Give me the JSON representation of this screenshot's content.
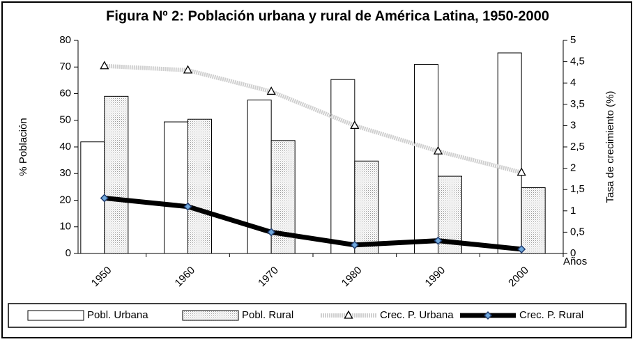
{
  "chart_data": {
    "type": "bar_line",
    "title": "Figura Nº 2: Población urbana y rural de América Latina, 1950-2000",
    "ylabel": "% Población",
    "y2label": "Tasa de crecimiento (%)",
    "xlabel": "Años",
    "categories": [
      "1950",
      "1960",
      "1970",
      "1980",
      "1990",
      "2000"
    ],
    "series": [
      {
        "name": "Pobl. Urbana",
        "type": "bar",
        "color": "#ffffff",
        "values": [
          41.9,
          49.4,
          57.6,
          65.3,
          71.0,
          75.3
        ]
      },
      {
        "name": "Pobl. Rural",
        "type": "bar",
        "color": "#e6e6e6",
        "values": [
          59.0,
          50.4,
          42.4,
          34.7,
          29.0,
          24.7
        ]
      },
      {
        "name": "Crec. P. Urbana",
        "type": "line",
        "axis": "y2",
        "color": "#cfcfcf",
        "marker": "triangle",
        "values": [
          4.4,
          4.3,
          3.8,
          3.0,
          2.4,
          1.9
        ]
      },
      {
        "name": "Crec. P. Rural",
        "type": "line",
        "axis": "y2",
        "color": "#000000",
        "marker": "diamond",
        "values": [
          1.3,
          1.1,
          0.5,
          0.2,
          0.3,
          0.1
        ]
      }
    ],
    "ylim": [
      0,
      80
    ],
    "yticks": [
      0,
      10,
      20,
      30,
      40,
      50,
      60,
      70,
      80
    ],
    "y2lim": [
      0,
      5
    ],
    "y2ticks": [
      0,
      {
        "value": 0.5,
        "label": "0,5"
      },
      1,
      {
        "value": 1.5,
        "label": "1,5"
      },
      2,
      {
        "value": 2.5,
        "label": "2,5"
      },
      3,
      {
        "value": 3.5,
        "label": "3,5"
      },
      4,
      {
        "value": 4.5,
        "label": "4,5"
      },
      5
    ],
    "legend": "bottom"
  }
}
